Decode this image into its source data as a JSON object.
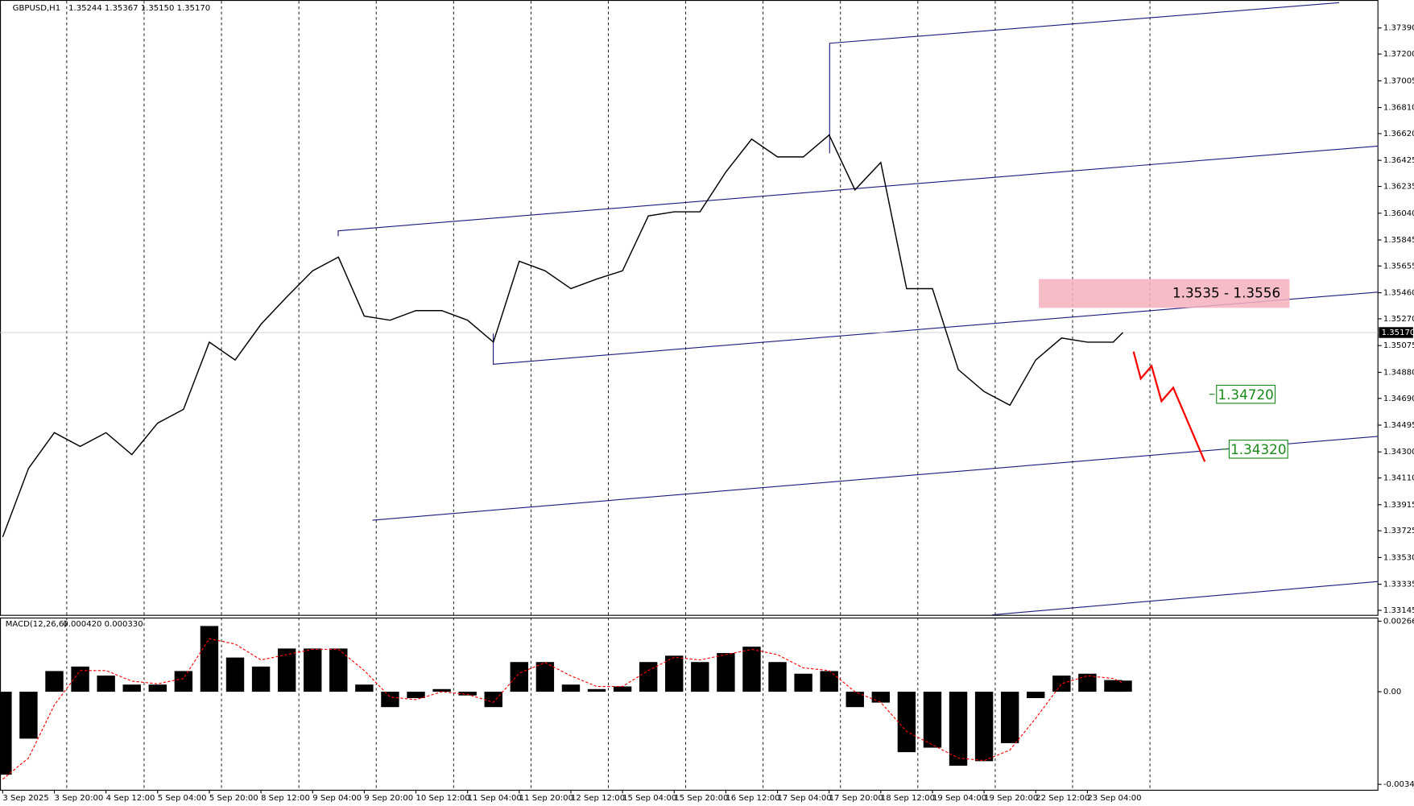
{
  "chart_data": [
    {
      "type": "line",
      "title": "GBPUSD,H1",
      "header_values": "1.35244 1.35367 1.35150 1.35170",
      "x": [
        0,
        8,
        16,
        24,
        32,
        40,
        48,
        56,
        64,
        72,
        80,
        88,
        96,
        104,
        112,
        120,
        128,
        136,
        144,
        152,
        160,
        168,
        176,
        184,
        192,
        200,
        208,
        216,
        224,
        232,
        240,
        248,
        256,
        264,
        272,
        280,
        288,
        296,
        304,
        312,
        320,
        328,
        336,
        344,
        347
      ],
      "series": [
        {
          "name": "GBPUSD",
          "color": "#000000",
          "values": [
            1.3368,
            1.3418,
            1.3444,
            1.3434,
            1.3444,
            1.3428,
            1.3451,
            1.3461,
            1.351,
            1.3497,
            1.3523,
            1.3543,
            1.3562,
            1.3572,
            1.3529,
            1.3526,
            1.3533,
            1.3533,
            1.3526,
            1.351,
            1.3569,
            1.3562,
            1.3549,
            1.3556,
            1.3562,
            1.3602,
            1.3605,
            1.3605,
            1.3634,
            1.3658,
            1.3645,
            1.3645,
            1.3661,
            1.3621,
            1.3641,
            1.3549,
            1.3549,
            1.349,
            1.3474,
            1.3464,
            1.3497,
            1.3513,
            1.351,
            1.351,
            1.3517
          ]
        }
      ],
      "xlim": [
        0,
        426
      ],
      "ylim": [
        1.33112,
        1.37594
      ],
      "yticks": [
        {
          "value": 1.3739,
          "label": "1.37390"
        },
        {
          "value": 1.372,
          "label": "1.37200"
        },
        {
          "value": 1.37005,
          "label": "1.37005"
        },
        {
          "value": 1.3681,
          "label": "1.36810"
        },
        {
          "value": 1.3662,
          "label": "1.36620"
        },
        {
          "value": 1.36425,
          "label": "1.36425"
        },
        {
          "value": 1.36235,
          "label": "1.36235"
        },
        {
          "value": 1.3604,
          "label": "1.36040"
        },
        {
          "value": 1.35845,
          "label": "1.35845"
        },
        {
          "value": 1.35655,
          "label": "1.35655"
        },
        {
          "value": 1.3546,
          "label": "1.35460"
        },
        {
          "value": 1.3527,
          "label": "1.35270"
        },
        {
          "value": 1.35075,
          "label": "1.35075"
        },
        {
          "value": 1.3488,
          "label": "1.34880"
        },
        {
          "value": 1.3469,
          "label": "1.34690"
        },
        {
          "value": 1.34495,
          "label": "1.34495"
        },
        {
          "value": 1.343,
          "label": "1.34300"
        },
        {
          "value": 1.3411,
          "label": "1.34110"
        },
        {
          "value": 1.33915,
          "label": "1.33915"
        },
        {
          "value": 1.33725,
          "label": "1.33725"
        },
        {
          "value": 1.3353,
          "label": "1.33530"
        },
        {
          "value": 1.33335,
          "label": "1.33335"
        },
        {
          "value": 1.33145,
          "label": "1.33145"
        }
      ],
      "last_price": {
        "value": 1.3517,
        "label": "1.35170"
      },
      "zone": {
        "low": 1.3535,
        "high": 1.3556,
        "label": "1.3535 - 1.3556",
        "color": "#f4b0bd"
      },
      "targets": [
        {
          "value": 1.3472,
          "label": "1.34720"
        },
        {
          "value": 1.3432,
          "label": "1.34320"
        }
      ],
      "target_color": "#1a8a1a"
    },
    {
      "type": "macd",
      "title": "MACD(12,26,6)",
      "header_values": "0.000420 0.000330",
      "x": [
        0,
        8,
        16,
        24,
        32,
        40,
        48,
        56,
        64,
        72,
        80,
        88,
        96,
        104,
        112,
        120,
        128,
        136,
        144,
        152,
        160,
        168,
        176,
        184,
        192,
        200,
        208,
        216,
        224,
        232,
        240,
        248,
        256,
        264,
        272,
        280,
        288,
        296,
        304,
        312,
        320,
        328,
        336,
        344,
        347
      ],
      "series": [
        {
          "name": "MACD",
          "type": "bar",
          "color": "#000000",
          "values": [
            -0.00313,
            -0.00177,
            0.00078,
            0.00095,
            0.00061,
            0.00027,
            0.00027,
            0.00078,
            0.00248,
            0.00129,
            0.00095,
            0.00163,
            0.00163,
            0.00163,
            0.00027,
            -0.00058,
            -0.00024,
            0.0001,
            -0.00014,
            -0.00058,
            0.00112,
            0.00112,
            0.00027,
            0.0001,
            0.0002,
            0.00112,
            0.00136,
            0.00112,
            0.00146,
            0.0017,
            0.00112,
            0.00068,
            0.00078,
            -0.00058,
            -0.00041,
            -0.00228,
            -0.00211,
            -0.00279,
            -0.00262,
            -0.00194,
            -0.00024,
            0.00061,
            0.00068,
            0.00044,
            0.00042
          ]
        },
        {
          "name": "Signal",
          "type": "line",
          "color": "#ff0000",
          "values": [
            -0.0033,
            -0.0025,
            -0.0005,
            0.0008,
            0.0008,
            0.0004,
            0.0003,
            0.0005,
            0.002,
            0.0018,
            0.0012,
            0.0014,
            0.0016,
            0.0016,
            0.0008,
            -0.0002,
            -0.0003,
            0,
            -0.0001,
            -0.0004,
            0.0007,
            0.0011,
            0.0006,
            0.0002,
            0.0002,
            0.0008,
            0.0013,
            0.0012,
            0.0014,
            0.0016,
            0.0014,
            0.0009,
            0.0008,
            0,
            -0.0004,
            -0.0015,
            -0.002,
            -0.0025,
            -0.0026,
            -0.0022,
            -0.001,
            0.0003,
            0.0006,
            0.0005,
            0.00033
          ]
        }
      ],
      "xlim": [
        0,
        426
      ],
      "ylim": [
        -0.003699,
        0.002798
      ],
      "yticks": [
        0.002662,
        {
          "value": 0,
          "label": "0.00"
        },
        -0.003495
      ],
      "xticks": [
        {
          "value": 0,
          "label": "3 Sep 2025"
        },
        {
          "value": 16,
          "label": "3 Sep 20:00"
        },
        {
          "value": 32,
          "label": "4 Sep 12:00"
        },
        {
          "value": 48,
          "label": "5 Sep 04:00"
        },
        {
          "value": 64,
          "label": "5 Sep 20:00"
        },
        {
          "value": 80,
          "label": "8 Sep 12:00"
        },
        {
          "value": 96,
          "label": "9 Sep 04:00"
        },
        {
          "value": 112,
          "label": "9 Sep 20:00"
        },
        {
          "value": 128,
          "label": "10 Sep 12:00"
        },
        {
          "value": 144,
          "label": "11 Sep 04:00"
        },
        {
          "value": 160,
          "label": "11 Sep 20:00"
        },
        {
          "value": 176,
          "label": "12 Sep 12:00"
        },
        {
          "value": 192,
          "label": "15 Sep 04:00"
        },
        {
          "value": 208,
          "label": "15 Sep 20:00"
        },
        {
          "value": 224,
          "label": "16 Sep 12:00"
        },
        {
          "value": 240,
          "label": "17 Sep 04:00"
        },
        {
          "value": 256,
          "label": "17 Sep 20:00"
        },
        {
          "value": 272,
          "label": "18 Sep 12:00"
        },
        {
          "value": 288,
          "label": "19 Sep 04:00"
        },
        {
          "value": 304,
          "label": "19 Sep 20:00"
        },
        {
          "value": 320,
          "label": "22 Sep 12:00"
        },
        {
          "value": 336,
          "label": "23 Sep 04:00"
        }
      ]
    }
  ]
}
